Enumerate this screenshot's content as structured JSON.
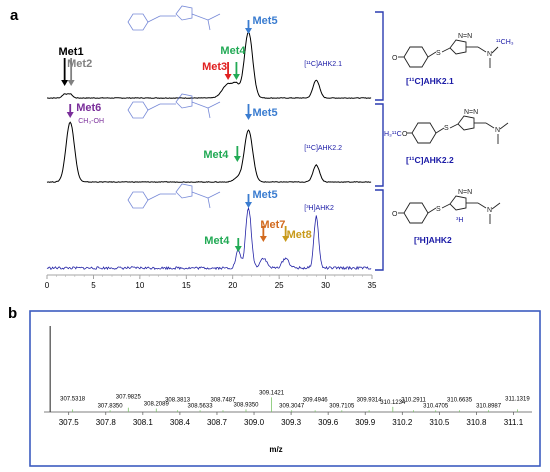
{
  "panel_a_letter": "a",
  "panel_b_letter": "b",
  "chart_data": [
    {
      "type": "line",
      "x_ticks": [
        0,
        5,
        10,
        15,
        20,
        25,
        30,
        35
      ],
      "xlim": [
        0,
        35
      ],
      "traces": [
        {
          "name": "[11C]AHK2.1",
          "color": "#000000",
          "label_on_plot": "[¹¹C]AHK2.1",
          "peaks": [
            {
              "label": "Met1",
              "x": 2.1,
              "color": "#000000"
            },
            {
              "label": "Met2",
              "x": 2.6,
              "color": "#808080"
            },
            {
              "label": "Met3",
              "x": 19.5,
              "color": "#e02020"
            },
            {
              "label": "Met4",
              "x": 20.4,
              "color": "#22aa55"
            },
            {
              "label": "Met5",
              "x": 21.7,
              "color": "#3a7cd0"
            }
          ]
        },
        {
          "name": "[11C]AHK2.2",
          "color": "#000000",
          "label_on_plot": "[¹¹C]AHK2.2",
          "peaks": [
            {
              "label": "Met6",
              "x": 2.5,
              "color": "#7a2e9a",
              "annotation": "CH₃-OH"
            },
            {
              "label": "Met4",
              "x": 20.5,
              "color": "#22aa55"
            },
            {
              "label": "Met5",
              "x": 21.7,
              "color": "#3a7cd0"
            }
          ]
        },
        {
          "name": "[3H]AHK2",
          "color": "#2323a6",
          "label_on_plot": "[³H]AHK2",
          "peaks": [
            {
              "label": "Met4",
              "x": 20.6,
              "color": "#22aa55"
            },
            {
              "label": "Met5",
              "x": 21.7,
              "color": "#3a7cd0"
            },
            {
              "label": "Met7",
              "x": 23.3,
              "color": "#d26a1e"
            },
            {
              "label": "Met8",
              "x": 25.7,
              "color": "#c89a1a"
            }
          ]
        }
      ],
      "compounds": [
        "[¹¹C]AHK2.1",
        "[¹¹C]AHK2.2",
        "[³H]AHK2"
      ],
      "structure_labels": {
        "ch3_11c": "¹¹CH₃",
        "h3c_11c": "H₃¹¹C",
        "tritium": "³H"
      }
    },
    {
      "type": "bar",
      "xlabel": "m/z",
      "x_ticks": [
        "307.5",
        "307.8",
        "308.1",
        "308.4",
        "308.7",
        "309.0",
        "309.3",
        "309.6",
        "309.9",
        "310.2",
        "310.5",
        "310.8",
        "311.1"
      ],
      "xlim": [
        307.3,
        311.25
      ],
      "peaks": [
        {
          "mz": 307.35,
          "intensity": 100,
          "label": ""
        },
        {
          "mz": 307.5318,
          "intensity": 3,
          "label": "307.5318"
        },
        {
          "mz": 307.835,
          "intensity": 2,
          "label": "307.8350"
        },
        {
          "mz": 307.9825,
          "intensity": 5,
          "label": "307.9825"
        },
        {
          "mz": 308.2089,
          "intensity": 4,
          "label": "308.2089"
        },
        {
          "mz": 308.3813,
          "intensity": 2,
          "label": "308.3813"
        },
        {
          "mz": 308.5633,
          "intensity": 2,
          "label": "308.5633"
        },
        {
          "mz": 308.7487,
          "intensity": 2,
          "label": "308.7487"
        },
        {
          "mz": 308.935,
          "intensity": 3,
          "label": "308.9350"
        },
        {
          "mz": 309.1421,
          "intensity": 17,
          "label": "309.1421"
        },
        {
          "mz": 309.3047,
          "intensity": 2,
          "label": "309.3047"
        },
        {
          "mz": 309.4946,
          "intensity": 2,
          "label": "309.4946"
        },
        {
          "mz": 309.7105,
          "intensity": 2,
          "label": "309.7105"
        },
        {
          "mz": 309.9314,
          "intensity": 2,
          "label": "309.9314"
        },
        {
          "mz": 310.1234,
          "intensity": 6,
          "label": "310.1234"
        },
        {
          "mz": 310.2911,
          "intensity": 2,
          "label": "310.2911"
        },
        {
          "mz": 310.4705,
          "intensity": 2,
          "label": "310.4705"
        },
        {
          "mz": 310.6635,
          "intensity": 2,
          "label": "310.6635"
        },
        {
          "mz": 310.8987,
          "intensity": 2,
          "label": "310.8987"
        },
        {
          "mz": 311.1319,
          "intensity": 3,
          "label": "311.1319"
        }
      ]
    }
  ]
}
